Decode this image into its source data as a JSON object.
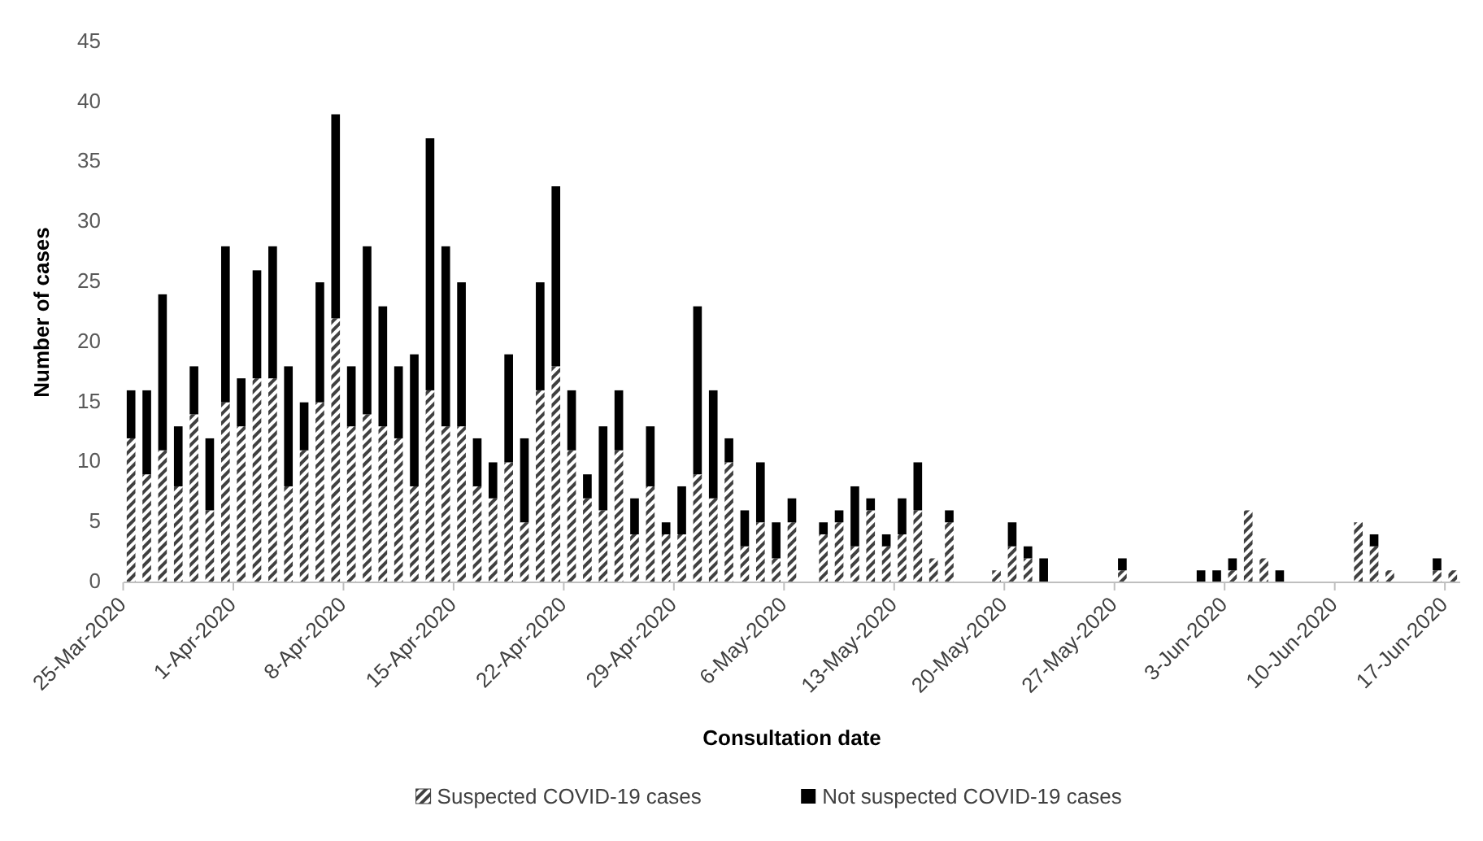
{
  "chart_data": {
    "type": "bar",
    "stacked": true,
    "xlabel": "Consultation date",
    "ylabel": "Number of cases",
    "categories": [
      "25-Mar-2020",
      null,
      null,
      null,
      null,
      null,
      null,
      "1-Apr-2020",
      null,
      null,
      null,
      null,
      null,
      null,
      "8-Apr-2020",
      null,
      null,
      null,
      null,
      null,
      null,
      "15-Apr-2020",
      null,
      null,
      null,
      null,
      null,
      null,
      "22-Apr-2020",
      null,
      null,
      null,
      null,
      null,
      null,
      "29-Apr-2020",
      null,
      null,
      null,
      null,
      null,
      null,
      "6-May-2020",
      null,
      null,
      null,
      null,
      null,
      null,
      "13-May-2020",
      null,
      null,
      null,
      null,
      null,
      null,
      "20-May-2020",
      null,
      null,
      null,
      null,
      null,
      null,
      "27-May-2020",
      null,
      null,
      null,
      null,
      null,
      null,
      "3-Jun-2020",
      null,
      null,
      null,
      null,
      null,
      null,
      "10-Jun-2020",
      null,
      null,
      null,
      null,
      null,
      null,
      "17-Jun-2020"
    ],
    "series": [
      {
        "name": "Suspected COVID-19 cases",
        "color": "#404040",
        "values": [
          12,
          9,
          11,
          8,
          14,
          6,
          15,
          13,
          17,
          17,
          8,
          11,
          15,
          22,
          13,
          14,
          13,
          12,
          8,
          16,
          13,
          13,
          8,
          7,
          10,
          5,
          16,
          18,
          11,
          7,
          6,
          11,
          4,
          8,
          4,
          4,
          9,
          7,
          10,
          3,
          5,
          2,
          5,
          0,
          4,
          5,
          3,
          6,
          3,
          4,
          6,
          2,
          5,
          0,
          0,
          1,
          3,
          2,
          0,
          0,
          0,
          0,
          0,
          1,
          0,
          0,
          0,
          0,
          0,
          0,
          1,
          6,
          2,
          0,
          0,
          0,
          0,
          0,
          5,
          3,
          1,
          0,
          0,
          1,
          1
        ]
      },
      {
        "name": "Not suspected COVID-19 cases",
        "color": "#000000",
        "values": [
          4,
          7,
          13,
          5,
          4,
          6,
          13,
          4,
          9,
          11,
          10,
          4,
          10,
          17,
          5,
          14,
          10,
          6,
          11,
          21,
          15,
          12,
          4,
          3,
          9,
          7,
          9,
          15,
          5,
          2,
          7,
          5,
          3,
          5,
          1,
          4,
          14,
          9,
          2,
          3,
          5,
          3,
          2,
          0,
          1,
          1,
          5,
          1,
          1,
          3,
          4,
          0,
          1,
          0,
          0,
          0,
          2,
          1,
          2,
          0,
          0,
          0,
          0,
          1,
          0,
          0,
          0,
          0,
          1,
          1,
          1,
          0,
          0,
          1,
          0,
          0,
          0,
          0,
          0,
          1,
          0,
          0,
          0,
          1,
          0
        ]
      }
    ],
    "ylim": [
      0,
      45
    ],
    "yticks": [
      0,
      5,
      10,
      15,
      20,
      25,
      30,
      35,
      40,
      45
    ],
    "grid": false,
    "legend": "bottom"
  }
}
